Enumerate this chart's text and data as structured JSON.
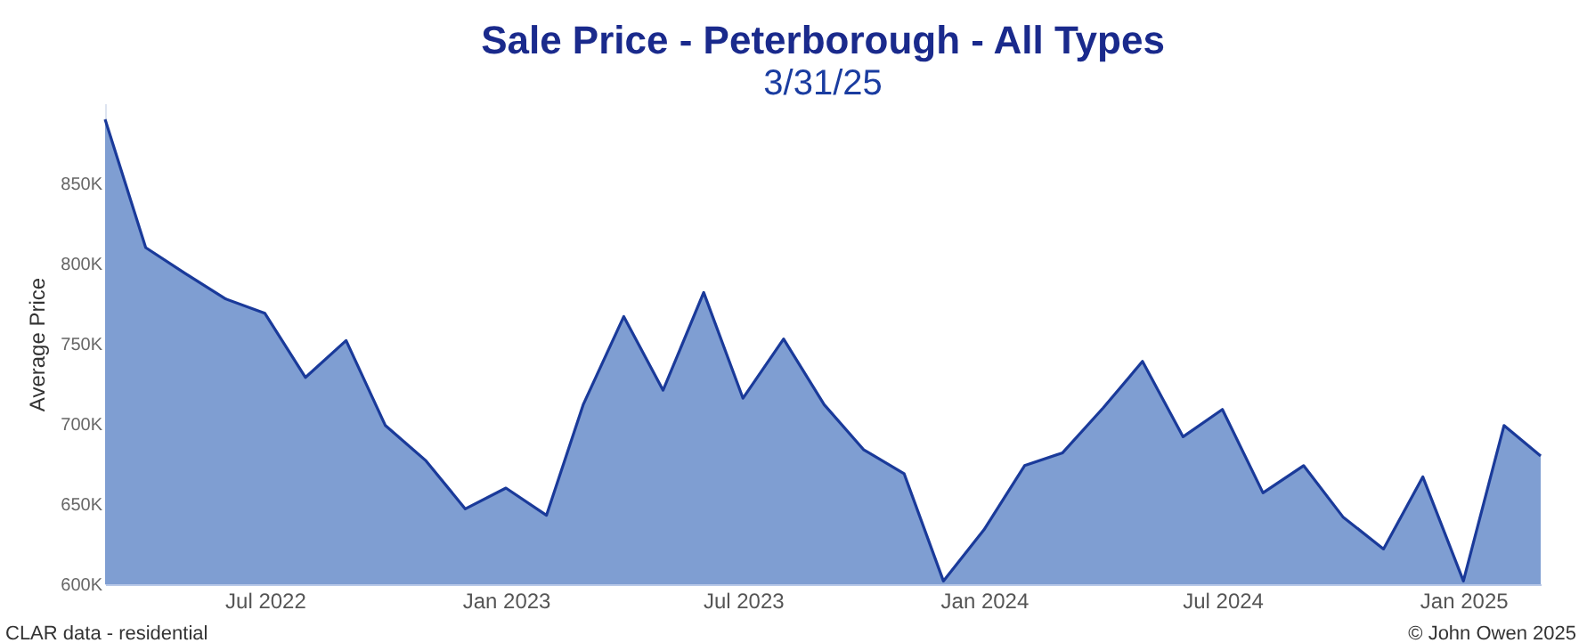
{
  "chart_data": {
    "type": "area",
    "title": "Sale Price - Peterborough - All Types",
    "subtitle": "3/31/25",
    "ylabel": "Average Price",
    "x": [
      "2022-03",
      "2022-04",
      "2022-05",
      "2022-06",
      "2022-07",
      "2022-08",
      "2022-09",
      "2022-10",
      "2022-11",
      "2022-12",
      "2023-01",
      "2023-02",
      "2023-03",
      "2023-04",
      "2023-05",
      "2023-06",
      "2023-07",
      "2023-08",
      "2023-09",
      "2023-10",
      "2023-11",
      "2023-12",
      "2024-01",
      "2024-02",
      "2024-03",
      "2024-04",
      "2024-05",
      "2024-06",
      "2024-07",
      "2024-08",
      "2024-09",
      "2024-10",
      "2024-11",
      "2024-12",
      "2025-01",
      "2025-02",
      "2025-03"
    ],
    "series": [
      {
        "color": "#7f9ed2",
        "values": [
          890000,
          810000,
          794000,
          778000,
          769000,
          729000,
          752000,
          699000,
          677000,
          647000,
          660000,
          643000,
          712000,
          767000,
          721000,
          782000,
          716000,
          753000,
          712000,
          684000,
          669000,
          602000,
          634000,
          674000,
          682000,
          710000,
          739000,
          692000,
          709000,
          657000,
          674000,
          642000,
          622000,
          667000,
          602000,
          699000,
          680000
        ]
      }
    ],
    "xlim": [
      "2022-03",
      "2025-03"
    ],
    "xticks": [
      {
        "value": "2022-07",
        "label": "Jul 2022"
      },
      {
        "value": "2023-01",
        "label": "Jan 2023"
      },
      {
        "value": "2023-07",
        "label": "Jul 2023"
      },
      {
        "value": "2024-01",
        "label": "Jan 2024"
      },
      {
        "value": "2024-07",
        "label": "Jul 2024"
      },
      {
        "value": "2025-01",
        "label": "Jan 2025"
      }
    ],
    "ylim": [
      600000,
      900000
    ],
    "yticks": [
      {
        "value": 600000,
        "label": "600K"
      },
      {
        "value": 650000,
        "label": "650K"
      },
      {
        "value": 700000,
        "label": "700K"
      },
      {
        "value": 750000,
        "label": "750K"
      },
      {
        "value": 800000,
        "label": "800K"
      },
      {
        "value": 850000,
        "label": "850K"
      }
    ],
    "grid": false,
    "marker": "none",
    "line_style": "solid",
    "annotations": [
      "CLAR data - residential",
      "© John Owen 2025"
    ]
  }
}
